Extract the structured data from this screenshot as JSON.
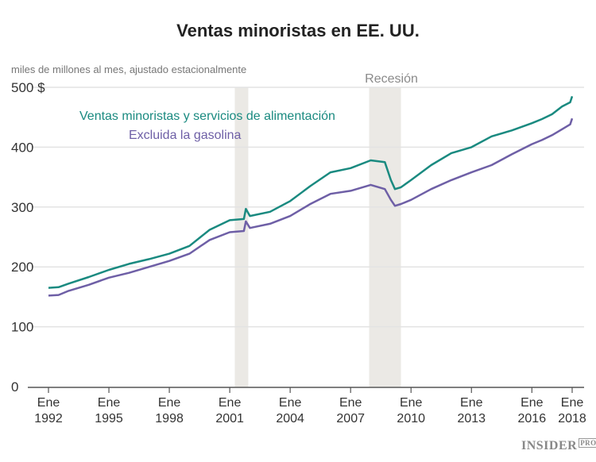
{
  "chart_data": {
    "type": "line",
    "title": "Ventas minoristas en EE. UU.",
    "subtitle": "miles de millones al mes, ajustado estacionalmente",
    "ylim": [
      0,
      500
    ],
    "y_ticks": [
      "0",
      "100",
      "200",
      "300",
      "400",
      "500 $"
    ],
    "y_tick_values": [
      0,
      100,
      200,
      300,
      400,
      500
    ],
    "x_ticks": [
      {
        "year": 1992,
        "label1": "Ene",
        "label2": "1992"
      },
      {
        "year": 1995,
        "label1": "Ene",
        "label2": "1995"
      },
      {
        "year": 1998,
        "label1": "Ene",
        "label2": "1998"
      },
      {
        "year": 2001,
        "label1": "Ene",
        "label2": "2001"
      },
      {
        "year": 2004,
        "label1": "Ene",
        "label2": "2004"
      },
      {
        "year": 2007,
        "label1": "Ene",
        "label2": "2007"
      },
      {
        "year": 2010,
        "label1": "Ene",
        "label2": "2010"
      },
      {
        "year": 2013,
        "label1": "Ene",
        "label2": "2013"
      },
      {
        "year": 2016,
        "label1": "Ene",
        "label2": "2016"
      },
      {
        "year": 2018,
        "label1": "Ene",
        "label2": "2018"
      }
    ],
    "xlim": [
      1992,
      2018
    ],
    "grid": true,
    "recessions": [
      {
        "start": 2001.25,
        "end": 2001.92,
        "label": ""
      },
      {
        "start": 2007.92,
        "end": 2009.5,
        "label": "Recesión"
      }
    ],
    "series": [
      {
        "name": "Ventas minoristas y servicios de alimentación",
        "color": "#1a8a80",
        "x": [
          1992,
          1992.5,
          1993,
          1994,
          1995,
          1996,
          1997,
          1998,
          1999,
          2000,
          2001,
          2001.7,
          2001.8,
          2002,
          2003,
          2004,
          2005,
          2006,
          2007,
          2008,
          2008.7,
          2009.0,
          2009.2,
          2009.5,
          2010,
          2011,
          2012,
          2013,
          2014,
          2015,
          2016,
          2016.5,
          2017,
          2017.5,
          2017.9,
          2018
        ],
        "y": [
          165,
          166,
          172,
          183,
          195,
          205,
          213,
          222,
          235,
          262,
          278,
          280,
          297,
          285,
          292,
          310,
          335,
          358,
          365,
          378,
          375,
          345,
          330,
          333,
          345,
          370,
          390,
          400,
          418,
          428,
          440,
          447,
          455,
          468,
          475,
          485
        ]
      },
      {
        "name": "Excluida la gasolina",
        "color": "#6e5fa6",
        "x": [
          1992,
          1992.5,
          1993,
          1994,
          1995,
          1996,
          1997,
          1998,
          1999,
          2000,
          2001,
          2001.7,
          2001.8,
          2002,
          2003,
          2004,
          2005,
          2006,
          2007,
          2008,
          2008.7,
          2009.0,
          2009.2,
          2009.5,
          2010,
          2011,
          2012,
          2013,
          2014,
          2015,
          2016,
          2016.5,
          2017,
          2017.5,
          2017.9,
          2018
        ],
        "y": [
          152,
          153,
          160,
          170,
          182,
          190,
          200,
          210,
          222,
          245,
          258,
          260,
          276,
          265,
          272,
          285,
          305,
          322,
          327,
          337,
          330,
          312,
          302,
          305,
          312,
          330,
          345,
          358,
          370,
          388,
          405,
          412,
          420,
          430,
          438,
          448
        ]
      }
    ]
  },
  "branding": {
    "logo": "INSIDER",
    "logo_suffix": "PRO"
  }
}
